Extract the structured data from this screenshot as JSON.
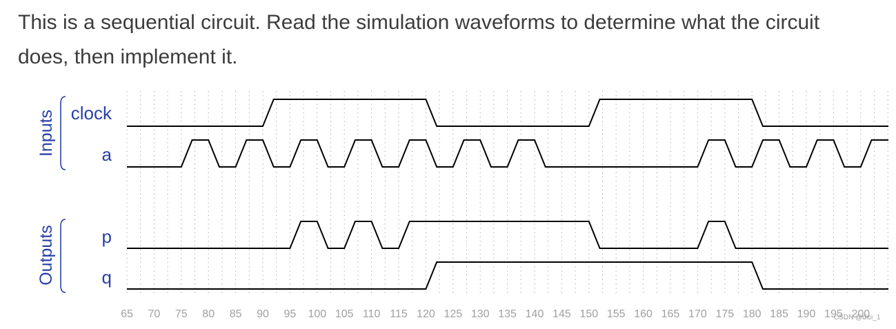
{
  "description": {
    "line1": "This is a sequential circuit. Read the simulation waveforms to determine what the circuit",
    "line2": "does, then implement it."
  },
  "groups": {
    "inputs_label": "Inputs",
    "outputs_label": "Outputs"
  },
  "colors": {
    "signal_label": "#2840a8",
    "waveform": "#000000",
    "grid": "#9a9a9a",
    "tick_text": "#a0a0a0"
  },
  "timing": {
    "time_ticks": [
      65,
      70,
      75,
      80,
      85,
      90,
      95,
      100,
      105,
      110,
      115,
      120,
      125,
      130,
      135,
      140,
      145,
      150,
      155,
      160,
      165,
      170,
      175,
      180,
      185,
      190,
      195,
      200
    ],
    "signals": [
      {
        "name": "clock",
        "group": "inputs",
        "initial": 0,
        "edges": [
          [
            90,
            92,
            1
          ],
          [
            120,
            122,
            0
          ],
          [
            150,
            152,
            1
          ],
          [
            180,
            182,
            0
          ]
        ]
      },
      {
        "name": "a",
        "group": "inputs",
        "initial": 0,
        "edges": [
          [
            75,
            77,
            1
          ],
          [
            80,
            82,
            0
          ],
          [
            85,
            87,
            1
          ],
          [
            90,
            92,
            0
          ],
          [
            95,
            97,
            1
          ],
          [
            100,
            102,
            0
          ],
          [
            105,
            107,
            1
          ],
          [
            110,
            112,
            0
          ],
          [
            115,
            117,
            1
          ],
          [
            120,
            122,
            0
          ],
          [
            125,
            127,
            1
          ],
          [
            130,
            132,
            0
          ],
          [
            135,
            137,
            1
          ],
          [
            140,
            142,
            0
          ],
          [
            170,
            172,
            1
          ],
          [
            175,
            177,
            0
          ],
          [
            180,
            182,
            1
          ],
          [
            185,
            187,
            0
          ],
          [
            190,
            192,
            1
          ],
          [
            195,
            197,
            0
          ],
          [
            200,
            202,
            1
          ]
        ]
      },
      {
        "name": "p",
        "group": "outputs",
        "initial": 0,
        "edges": [
          [
            95,
            97,
            1
          ],
          [
            100,
            102,
            0
          ],
          [
            105,
            107,
            1
          ],
          [
            110,
            112,
            0
          ],
          [
            115,
            117,
            1
          ],
          [
            150,
            152,
            0
          ],
          [
            170,
            172,
            1
          ],
          [
            175,
            177,
            0
          ]
        ]
      },
      {
        "name": "q",
        "group": "outputs",
        "initial": 0,
        "edges": [
          [
            120,
            122,
            1
          ],
          [
            180,
            182,
            0
          ]
        ]
      }
    ]
  },
  "watermark": "CSDN @dici_1"
}
